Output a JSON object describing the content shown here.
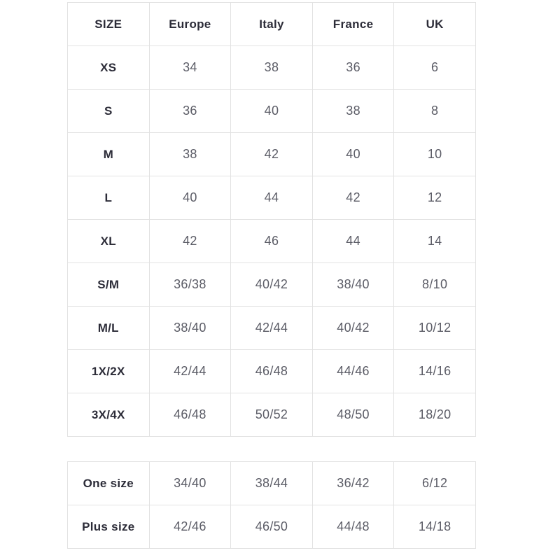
{
  "colors": {
    "border": "#e2e2e2",
    "header_text": "#2c2c38",
    "cell_text": "#5b5c66",
    "background": "#ffffff"
  },
  "size_table": {
    "headers": [
      "SIZE",
      "Europe",
      "Italy",
      "France",
      "UK"
    ],
    "rows": [
      [
        "XS",
        "34",
        "38",
        "36",
        "6"
      ],
      [
        "S",
        "36",
        "40",
        "38",
        "8"
      ],
      [
        "M",
        "38",
        "42",
        "40",
        "10"
      ],
      [
        "L",
        "40",
        "44",
        "42",
        "12"
      ],
      [
        "XL",
        "42",
        "46",
        "44",
        "14"
      ],
      [
        "S/M",
        "36/38",
        "40/42",
        "38/40",
        "8/10"
      ],
      [
        "M/L",
        "38/40",
        "42/44",
        "40/42",
        "10/12"
      ],
      [
        "1X/2X",
        "42/44",
        "46/48",
        "44/46",
        "14/16"
      ],
      [
        "3X/4X",
        "46/48",
        "50/52",
        "48/50",
        "18/20"
      ]
    ]
  },
  "special_table": {
    "rows": [
      [
        "One size",
        "34/40",
        "38/44",
        "36/42",
        "6/12"
      ],
      [
        "Plus size",
        "42/46",
        "46/50",
        "44/48",
        "14/18"
      ]
    ]
  }
}
